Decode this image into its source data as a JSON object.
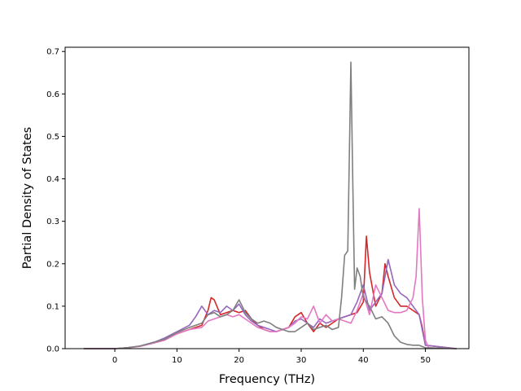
{
  "chart_data": {
    "type": "line",
    "title": "",
    "xlabel": "Frequency (THz)",
    "ylabel": "Partial Density of States",
    "xlim": [
      -8,
      57
    ],
    "ylim": [
      0,
      0.71
    ],
    "xticks": [
      0,
      10,
      20,
      30,
      40,
      50
    ],
    "yticks": [
      0.0,
      0.1,
      0.2,
      0.3,
      0.4,
      0.5,
      0.6,
      0.7
    ],
    "xtick_labels": [
      "0",
      "10",
      "20",
      "30",
      "40",
      "50"
    ],
    "ytick_labels": [
      "0.0",
      "0.1",
      "0.2",
      "0.3",
      "0.4",
      "0.5",
      "0.6",
      "0.7"
    ],
    "grid": false,
    "legend": "none",
    "series": [
      {
        "color": "#d62728",
        "x": [
          -5,
          0,
          2,
          4,
          6,
          8,
          10,
          12,
          14,
          15,
          15.5,
          16,
          17,
          18,
          19,
          20,
          21,
          22,
          23,
          24,
          25,
          26,
          27,
          28,
          29,
          30,
          31,
          32,
          33,
          34,
          35,
          36,
          37,
          38,
          39,
          40,
          40.5,
          41,
          42,
          43,
          43.5,
          44,
          45,
          46,
          47,
          48,
          49,
          49.5,
          50,
          55
        ],
        "y": [
          0,
          0,
          0.002,
          0.006,
          0.013,
          0.02,
          0.035,
          0.045,
          0.055,
          0.09,
          0.12,
          0.115,
          0.08,
          0.085,
          0.09,
          0.085,
          0.09,
          0.07,
          0.055,
          0.045,
          0.04,
          0.04,
          0.045,
          0.05,
          0.075,
          0.085,
          0.06,
          0.04,
          0.06,
          0.05,
          0.06,
          0.07,
          0.075,
          0.08,
          0.085,
          0.11,
          0.265,
          0.18,
          0.1,
          0.13,
          0.2,
          0.17,
          0.12,
          0.1,
          0.1,
          0.09,
          0.08,
          0.05,
          0.008,
          0
        ]
      },
      {
        "color": "#9467bd",
        "x": [
          -5,
          0,
          2,
          4,
          6,
          8,
          10,
          12,
          13,
          14,
          15,
          16,
          17,
          18,
          19,
          20,
          21,
          22,
          23,
          24,
          25,
          26,
          27,
          28,
          29,
          30,
          31,
          32,
          33,
          34,
          35,
          36,
          37,
          38,
          39,
          40,
          41,
          42,
          43,
          44,
          44.5,
          45,
          46,
          47,
          48,
          49,
          50,
          55
        ],
        "y": [
          0,
          0,
          0.002,
          0.006,
          0.013,
          0.025,
          0.04,
          0.055,
          0.075,
          0.1,
          0.08,
          0.09,
          0.085,
          0.1,
          0.09,
          0.105,
          0.08,
          0.065,
          0.055,
          0.05,
          0.045,
          0.04,
          0.045,
          0.05,
          0.065,
          0.07,
          0.06,
          0.05,
          0.07,
          0.06,
          0.065,
          0.07,
          0.075,
          0.08,
          0.11,
          0.15,
          0.09,
          0.11,
          0.13,
          0.21,
          0.18,
          0.15,
          0.13,
          0.12,
          0.1,
          0.08,
          0.008,
          0
        ]
      },
      {
        "color": "#e377c2",
        "x": [
          -5,
          0,
          2,
          4,
          6,
          8,
          10,
          12,
          14,
          15,
          16,
          17,
          18,
          19,
          20,
          21,
          22,
          23,
          24,
          25,
          26,
          27,
          28,
          29,
          30,
          31,
          32,
          33,
          34,
          35,
          36,
          37,
          38,
          39,
          40,
          41,
          42,
          43,
          44,
          45,
          46,
          47,
          48,
          48.5,
          49,
          49.5,
          50,
          50.5,
          55
        ],
        "y": [
          0,
          0,
          0.002,
          0.005,
          0.012,
          0.02,
          0.035,
          0.045,
          0.05,
          0.065,
          0.07,
          0.075,
          0.08,
          0.075,
          0.08,
          0.07,
          0.06,
          0.05,
          0.045,
          0.04,
          0.04,
          0.045,
          0.05,
          0.06,
          0.075,
          0.07,
          0.1,
          0.06,
          0.08,
          0.065,
          0.07,
          0.065,
          0.06,
          0.09,
          0.13,
          0.08,
          0.15,
          0.12,
          0.09,
          0.085,
          0.085,
          0.09,
          0.12,
          0.17,
          0.33,
          0.12,
          0.02,
          0.002,
          0
        ]
      },
      {
        "color": "#7f7f7f",
        "x": [
          -5,
          0,
          2,
          4,
          6,
          8,
          10,
          12,
          14,
          15,
          16,
          17,
          18,
          19,
          20,
          21,
          22,
          23,
          24,
          25,
          26,
          27,
          28,
          29,
          30,
          31,
          32,
          33,
          34,
          35,
          36,
          36.5,
          37,
          37.5,
          38,
          38.3,
          38.6,
          39,
          39.5,
          40,
          41,
          42,
          43,
          44,
          45,
          46,
          47,
          48,
          49,
          50,
          55
        ],
        "y": [
          0,
          0,
          0.002,
          0.006,
          0.014,
          0.022,
          0.038,
          0.05,
          0.06,
          0.08,
          0.085,
          0.075,
          0.08,
          0.09,
          0.115,
          0.085,
          0.07,
          0.06,
          0.065,
          0.06,
          0.05,
          0.045,
          0.04,
          0.04,
          0.05,
          0.06,
          0.045,
          0.05,
          0.055,
          0.045,
          0.05,
          0.12,
          0.22,
          0.23,
          0.675,
          0.4,
          0.14,
          0.19,
          0.17,
          0.12,
          0.1,
          0.07,
          0.075,
          0.06,
          0.03,
          0.015,
          0.01,
          0.008,
          0.008,
          0.002,
          0
        ]
      }
    ]
  }
}
